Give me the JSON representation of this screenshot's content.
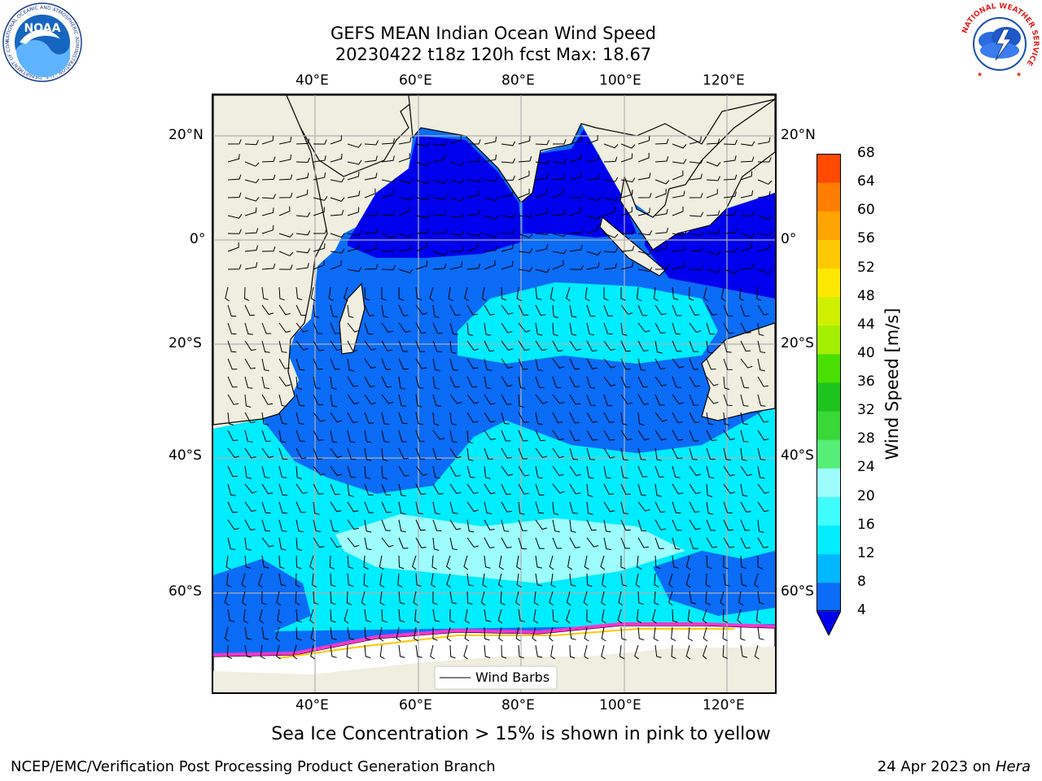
{
  "title_line1": "GEFS MEAN Indian Ocean Wind Speed",
  "title_line2": "20230422 t18z 120h fcst   Max: 18.67",
  "map": {
    "lon_ticks_top": [
      "40°E",
      "60°E",
      "80°E",
      "100°E",
      "120°E"
    ],
    "lon_ticks_bottom": [
      "40°E",
      "60°E",
      "80°E",
      "100°E",
      "120°E"
    ],
    "lat_ticks_left": [
      "20°N",
      "0°",
      "20°S",
      "40°S",
      "60°S"
    ],
    "lat_ticks_right": [
      "20°N",
      "0°",
      "20°S",
      "40°S",
      "60°S"
    ],
    "legend_label": "Wind Barbs"
  },
  "colorbar": {
    "label": "Wind Speed [m/s]",
    "ticks": [
      "4",
      "8",
      "12",
      "16",
      "20",
      "24",
      "28",
      "32",
      "36",
      "40",
      "44",
      "48",
      "52",
      "56",
      "60",
      "64",
      "68"
    ],
    "colors": [
      "#0a6cf7",
      "#00b8ff",
      "#00ecff",
      "#3ffdff",
      "#9dfdfd",
      "#55ee77",
      "#37d837",
      "#1ec41e",
      "#49e000",
      "#a4f000",
      "#d0f000",
      "#ffe800",
      "#ffc800",
      "#ffa400",
      "#ff7e00",
      "#ff4a00",
      "#ff1400"
    ],
    "under_color": "#0000ee"
  },
  "logos": {
    "noaa_text": "NOAA",
    "noaa_ring": "NATIONAL OCEANIC AND ATMOSPHERIC ADMINISTRATION · U.S. DEPARTMENT OF COMMERCE",
    "nws_ring": "NATIONAL WEATHER SERVICE"
  },
  "caption": "Sea Ice Concentration > 15% is shown in pink to yellow",
  "footer_left": "NCEP/EMC/Verification Post Processing Product Generation Branch",
  "footer_right_date": "24 Apr 2023 on",
  "footer_right_host": "Hera",
  "colors": {
    "land": "#efeedf",
    "ocean_dark": "#0000ee",
    "ocean_mid": "#0a6cf7",
    "ocean_light": "#00ecff",
    "ocean_pale": "#9dfdfd",
    "ice": "#ff33cc"
  }
}
